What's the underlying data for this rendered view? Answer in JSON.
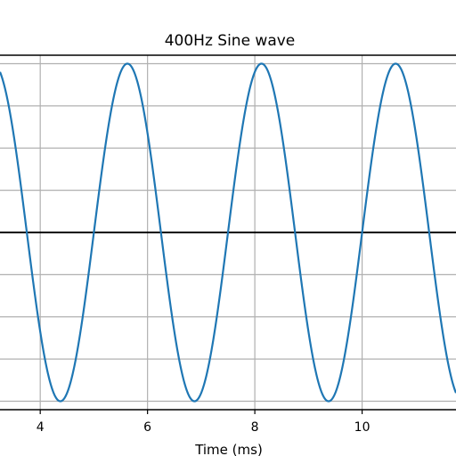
{
  "chart_data": {
    "type": "line",
    "title": "400Hz Sine wave",
    "xlabel": "Time (ms)",
    "ylabel": "",
    "xlim": [
      3.25,
      11.75
    ],
    "ylim": [
      -1.05,
      1.05
    ],
    "x_ticks": [
      4,
      6,
      8,
      10
    ],
    "x_tick_labels": [
      "4",
      "6",
      "8",
      "10"
    ],
    "y_gridlines": [
      -1.0,
      -0.75,
      -0.5,
      -0.25,
      0.0,
      0.25,
      0.5,
      0.75,
      1.0
    ],
    "grid": true,
    "zero_line": 0,
    "legend": "none",
    "series": [
      {
        "frequency_hz": 400,
        "amplitude": 1,
        "function": "sin",
        "color": "#1f77b4"
      }
    ]
  },
  "colors": {
    "background": "#ffffff",
    "grid": "#b0b0b0",
    "axes": "#000000",
    "line": "#1f77b4"
  }
}
